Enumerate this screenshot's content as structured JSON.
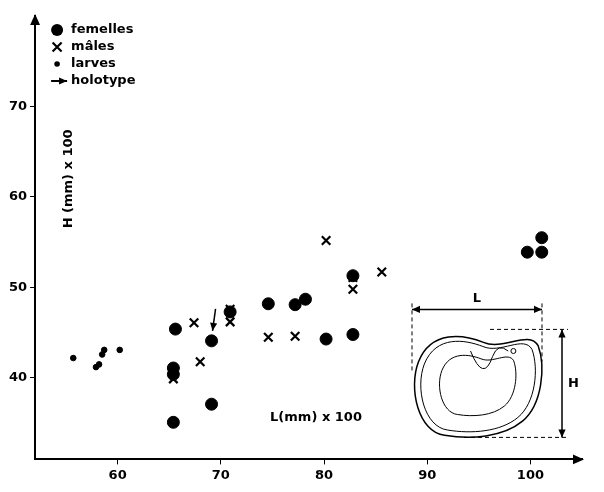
{
  "chart_data": {
    "type": "scatter",
    "xlabel": "L(mm) x 100",
    "ylabel": "H (mm) x 100",
    "xlim": [
      52,
      105
    ],
    "ylim": [
      31,
      80
    ],
    "xticks": [
      60,
      70,
      80,
      90,
      100
    ],
    "yticks": [
      40,
      50,
      60,
      70
    ],
    "grid": false,
    "legend": "top-left",
    "series": [
      {
        "name": "femelles",
        "color": "#000000",
        "marker": "circle",
        "x": [
          65.6,
          65.4,
          65.4,
          65.4,
          69.1,
          69.1,
          70.9,
          74.6,
          77.2,
          78.2,
          80.2,
          82.8,
          82.8,
          99.7,
          101.1,
          101.1
        ],
        "values": [
          45.4,
          41.1,
          40.4,
          35.1,
          44.1,
          37.1,
          47.3,
          48.2,
          48.1,
          48.7,
          44.3,
          51.3,
          44.8,
          53.9,
          53.9,
          55.5
        ]
      },
      {
        "name": "mâles",
        "color": "#000000",
        "marker": "x",
        "x": [
          65.4,
          67.4,
          68.0,
          70.9,
          70.9,
          74.6,
          77.2,
          80.2,
          82.8,
          82.8,
          85.6
        ],
        "values": [
          39.9,
          46.1,
          41.8,
          46.2,
          47.6,
          44.5,
          44.6,
          55.2,
          51.1,
          49.8,
          51.7
        ]
      },
      {
        "name": "larves",
        "color": "#000000",
        "marker": "dot",
        "x": [
          55.7,
          57.9,
          58.2,
          58.5,
          58.7,
          60.2
        ],
        "values": [
          42.2,
          41.2,
          41.5,
          42.6,
          43.1,
          43.1
        ]
      }
    ],
    "annotations": [
      {
        "text": "holotype",
        "x": 69.1,
        "y": 44.1
      }
    ],
    "inset": {
      "width_label": "L",
      "height_label": "H"
    }
  }
}
